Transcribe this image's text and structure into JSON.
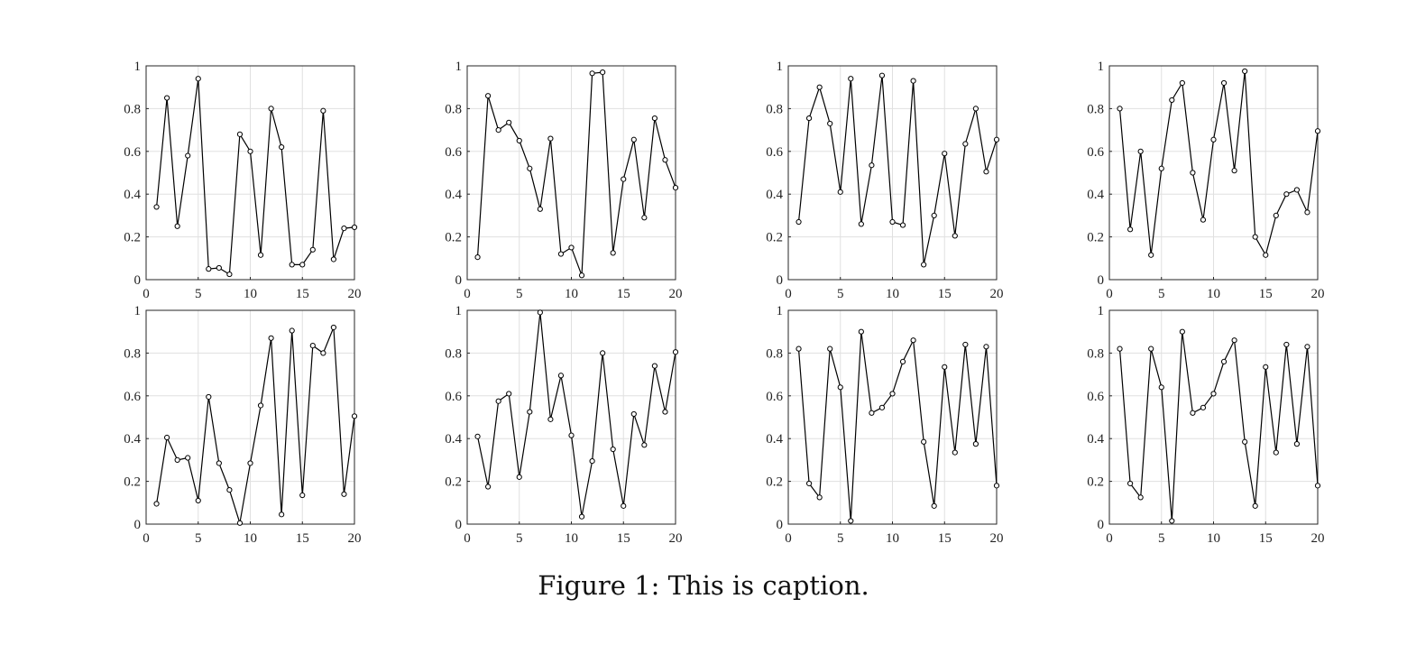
{
  "caption": "Figure 1: This is caption.",
  "chart_data": [
    {
      "type": "line",
      "x": [
        1,
        2,
        3,
        4,
        5,
        6,
        7,
        8,
        9,
        10,
        11,
        12,
        13,
        14,
        15,
        16,
        17,
        18,
        19,
        20
      ],
      "values": [
        0.34,
        0.85,
        0.25,
        0.58,
        0.94,
        0.05,
        0.055,
        0.025,
        0.68,
        0.6,
        0.115,
        0.8,
        0.62,
        0.07,
        0.07,
        0.14,
        0.79,
        0.095,
        0.24,
        0.245
      ],
      "xlim": [
        0,
        20
      ],
      "ylim": [
        0,
        1
      ],
      "xticks": [
        "0",
        "5",
        "10",
        "15",
        "20"
      ],
      "yticks": [
        "0",
        "0.2",
        "0.4",
        "0.6",
        "0.8",
        "1"
      ],
      "grid": true,
      "marker": "circle"
    },
    {
      "type": "line",
      "x": [
        1,
        2,
        3,
        4,
        5,
        6,
        7,
        8,
        9,
        10,
        11,
        12,
        13,
        14,
        15,
        16,
        17,
        18,
        19,
        20
      ],
      "values": [
        0.105,
        0.86,
        0.7,
        0.735,
        0.65,
        0.52,
        0.33,
        0.66,
        0.12,
        0.15,
        0.02,
        0.965,
        0.97,
        0.125,
        0.47,
        0.655,
        0.29,
        0.755,
        0.56,
        0.43
      ],
      "xlim": [
        0,
        20
      ],
      "ylim": [
        0,
        1
      ],
      "xticks": [
        "0",
        "5",
        "10",
        "15",
        "20"
      ],
      "yticks": [
        "0",
        "0.2",
        "0.4",
        "0.6",
        "0.8",
        "1"
      ],
      "grid": true,
      "marker": "circle"
    },
    {
      "type": "line",
      "x": [
        1,
        2,
        3,
        4,
        5,
        6,
        7,
        8,
        9,
        10,
        11,
        12,
        13,
        14,
        15,
        16,
        17,
        18,
        19,
        20
      ],
      "values": [
        0.27,
        0.755,
        0.9,
        0.73,
        0.41,
        0.94,
        0.26,
        0.535,
        0.955,
        0.27,
        0.255,
        0.93,
        0.07,
        0.3,
        0.59,
        0.205,
        0.635,
        0.8,
        0.505,
        0.655
      ],
      "xlim": [
        0,
        20
      ],
      "ylim": [
        0,
        1
      ],
      "xticks": [
        "0",
        "5",
        "10",
        "15",
        "20"
      ],
      "yticks": [
        "0",
        "0.2",
        "0.4",
        "0.6",
        "0.8",
        "1"
      ],
      "grid": true,
      "marker": "circle"
    },
    {
      "type": "line",
      "x": [
        1,
        2,
        3,
        4,
        5,
        6,
        7,
        8,
        9,
        10,
        11,
        12,
        13,
        14,
        15,
        16,
        17,
        18,
        19,
        20
      ],
      "values": [
        0.8,
        0.235,
        0.6,
        0.115,
        0.52,
        0.84,
        0.92,
        0.5,
        0.28,
        0.655,
        0.92,
        0.51,
        0.975,
        0.2,
        0.115,
        0.3,
        0.4,
        0.42,
        0.315,
        0.695
      ],
      "xlim": [
        0,
        20
      ],
      "ylim": [
        0,
        1
      ],
      "xticks": [
        "0",
        "5",
        "10",
        "15",
        "20"
      ],
      "yticks": [
        "0",
        "0.2",
        "0.4",
        "0.6",
        "0.8",
        "1"
      ],
      "grid": true,
      "marker": "circle"
    },
    {
      "type": "line",
      "x": [
        1,
        2,
        3,
        4,
        5,
        6,
        7,
        8,
        9,
        10,
        11,
        12,
        13,
        14,
        15,
        16,
        17,
        18,
        19,
        20
      ],
      "values": [
        0.095,
        0.405,
        0.3,
        0.31,
        0.11,
        0.595,
        0.285,
        0.16,
        0.005,
        0.285,
        0.555,
        0.87,
        0.045,
        0.905,
        0.135,
        0.835,
        0.8,
        0.92,
        0.14,
        0.505
      ],
      "xlim": [
        0,
        20
      ],
      "ylim": [
        0,
        1
      ],
      "xticks": [
        "0",
        "5",
        "10",
        "15",
        "20"
      ],
      "yticks": [
        "0",
        "0.2",
        "0.4",
        "0.6",
        "0.8",
        "1"
      ],
      "grid": true,
      "marker": "circle"
    },
    {
      "type": "line",
      "x": [
        1,
        2,
        3,
        4,
        5,
        6,
        7,
        8,
        9,
        10,
        11,
        12,
        13,
        14,
        15,
        16,
        17,
        18,
        19,
        20
      ],
      "values": [
        0.41,
        0.175,
        0.575,
        0.61,
        0.22,
        0.525,
        0.99,
        0.49,
        0.695,
        0.415,
        0.035,
        0.295,
        0.8,
        0.35,
        0.085,
        0.515,
        0.37,
        0.74,
        0.525,
        0.805
      ],
      "xlim": [
        0,
        20
      ],
      "ylim": [
        0,
        1
      ],
      "xticks": [
        "0",
        "5",
        "10",
        "15",
        "20"
      ],
      "yticks": [
        "0",
        "0.2",
        "0.4",
        "0.6",
        "0.8",
        "1"
      ],
      "grid": true,
      "marker": "circle"
    },
    {
      "type": "line",
      "x": [
        1,
        2,
        3,
        4,
        5,
        6,
        7,
        8,
        9,
        10,
        11,
        12,
        13,
        14,
        15,
        16,
        17,
        18,
        19,
        20
      ],
      "values": [
        0.82,
        0.19,
        0.125,
        0.82,
        0.64,
        0.015,
        0.9,
        0.52,
        0.545,
        0.61,
        0.76,
        0.86,
        0.385,
        0.085,
        0.735,
        0.335,
        0.84,
        0.375,
        0.83,
        0.18
      ],
      "xlim": [
        0,
        20
      ],
      "ylim": [
        0,
        1
      ],
      "xticks": [
        "0",
        "5",
        "10",
        "15",
        "20"
      ],
      "yticks": [
        "0",
        "0.2",
        "0.4",
        "0.6",
        "0.8",
        "1"
      ],
      "grid": true,
      "marker": "circle"
    },
    {
      "type": "line",
      "x": [
        1,
        2,
        3,
        4,
        5,
        6,
        7,
        8,
        9,
        10,
        11,
        12,
        13,
        14,
        15,
        16,
        17,
        18,
        19,
        20
      ],
      "values": [
        0.82,
        0.19,
        0.125,
        0.82,
        0.64,
        0.015,
        0.9,
        0.52,
        0.545,
        0.61,
        0.76,
        0.86,
        0.385,
        0.085,
        0.735,
        0.335,
        0.84,
        0.375,
        0.83,
        0.18
      ],
      "xlim": [
        0,
        20
      ],
      "ylim": [
        0,
        1
      ],
      "xticks": [
        "0",
        "5",
        "10",
        "15",
        "20"
      ],
      "yticks": [
        "0",
        "0.2",
        "0.4",
        "0.6",
        "0.8",
        "1"
      ],
      "grid": true,
      "marker": "circle"
    }
  ]
}
